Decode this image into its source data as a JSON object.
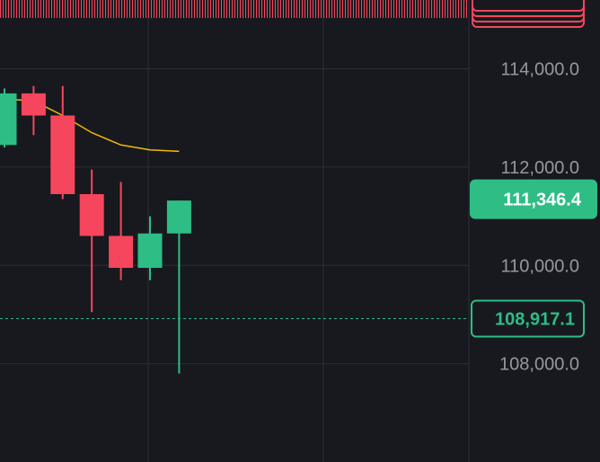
{
  "chart_data": {
    "type": "candlestick",
    "ylim": [
      106000,
      115400
    ],
    "y_ticks": [
      "108,000.0",
      "110,000.0",
      "112,000.0",
      "114,000.0"
    ],
    "y_tick_values": [
      108000,
      110000,
      112000,
      114000
    ],
    "candles": [
      {
        "open": 112450,
        "close": 113500,
        "high": 113600,
        "low": 112400
      },
      {
        "open": 113500,
        "close": 113050,
        "high": 113650,
        "low": 112650
      },
      {
        "open": 113050,
        "close": 111450,
        "high": 113650,
        "low": 111350
      },
      {
        "open": 111450,
        "close": 110600,
        "high": 111950,
        "low": 109050
      },
      {
        "open": 110600,
        "close": 109950,
        "high": 111700,
        "low": 109700
      },
      {
        "open": 109950,
        "close": 110650,
        "high": 111000,
        "low": 109700
      },
      {
        "open": 110650,
        "close": 111320,
        "high": 111320,
        "low": 107800
      }
    ],
    "moving_average": [
      {
        "candle": -0.5,
        "value": 113400
      },
      {
        "candle": 1,
        "value": 113350
      },
      {
        "candle": 2,
        "value": 113050
      },
      {
        "candle": 3,
        "value": 112700
      },
      {
        "candle": 4,
        "value": 112450
      },
      {
        "candle": 5,
        "value": 112350
      },
      {
        "candle": 6,
        "value": 112320
      }
    ],
    "last_price": {
      "value": 111346.4,
      "label": "111,346.4"
    },
    "reference_line": {
      "value": 108917.1,
      "label": "108,917.1"
    }
  },
  "colors": {
    "background": "#17191e",
    "grid": "#2a2e39",
    "up": "#2ebd85",
    "down": "#f6465d",
    "moving_average": "#f0b90b",
    "tick_text": "#9598a1",
    "badge_text": "#ffffff"
  }
}
